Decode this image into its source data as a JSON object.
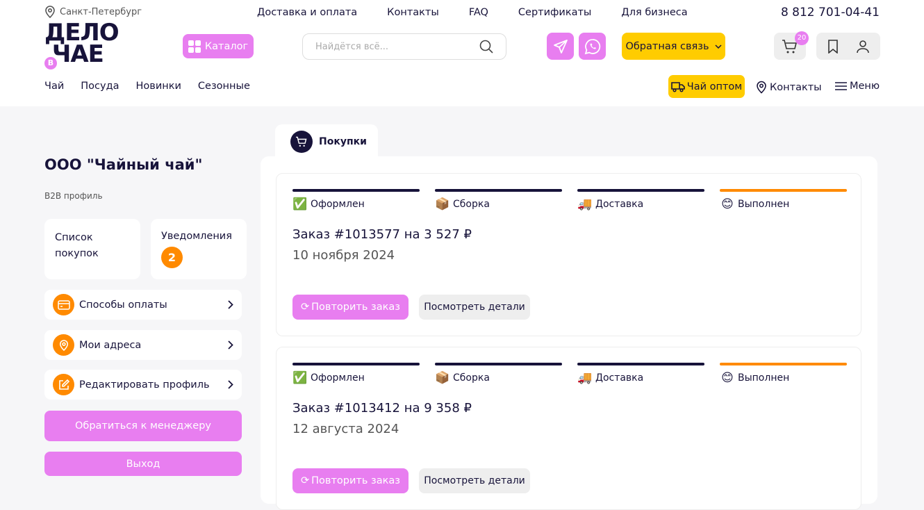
{
  "header": {
    "city": "Санкт-Петербург",
    "top_nav": [
      "Доставка и оплата",
      "Контакты",
      "FAQ",
      "Сертификаты",
      "Для бизнеса"
    ],
    "phone": "8 812 701-04-41",
    "logo_text": "ДЕЛО ЧАЕ",
    "catalog_label": "Каталог",
    "search_placeholder": "Найдётся всё...",
    "feedback_label": "Обратная связь",
    "cart_count": "20",
    "sub_nav": [
      "Чай",
      "Посуда",
      "Новинки",
      "Сезонные"
    ],
    "wholesale_label": "Чай оптом",
    "contacts_label": "Контакты",
    "menu_label": "Меню"
  },
  "colors": {
    "accent_pink": "#e87ef0",
    "accent_yellow": "#ffcc00",
    "accent_orange": "#ff8a00",
    "navy": "#17133a"
  },
  "sidebar": {
    "company": "ООО \"Чайный чай\"",
    "profile_type": "B2B профиль",
    "shopping_list": "Список покупок",
    "notifications": "Уведомления",
    "notifications_count": "2",
    "items": [
      {
        "label": "Способы оплаты",
        "icon": "card-icon"
      },
      {
        "label": "Мои адреса",
        "icon": "location-icon"
      },
      {
        "label": "Редактировать профиль",
        "icon": "edit-icon"
      }
    ],
    "manager_button": "Обратиться к менеджеру",
    "logout_button": "Выход"
  },
  "main": {
    "tab": "Покупки",
    "steps": [
      "Оформлен",
      "Сборка",
      "Доставка",
      "Выполнен"
    ],
    "orders": [
      {
        "title": "Заказ #1013577 на 3 527 ₽",
        "date": "10 ноября 2024"
      },
      {
        "title": "Заказ #1013412 на 9 358 ₽",
        "date": "12 августа 2024"
      }
    ],
    "repeat_label": "Повторить заказ",
    "details_label": "Посмотреть детали"
  }
}
